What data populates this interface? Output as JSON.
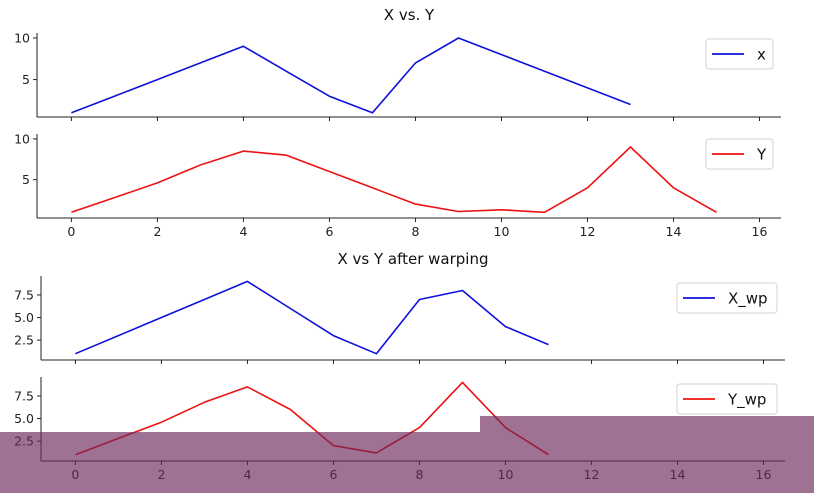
{
  "chart_data": [
    {
      "type": "line",
      "title": "X vs. Y",
      "xlim": [
        -0.8,
        16.5
      ],
      "ylim": [
        0.5,
        10.6
      ],
      "yticks": [
        5,
        10
      ],
      "show_xticklabels": false,
      "legend_loc": "right",
      "series": [
        {
          "name": "x",
          "color": "#1010dd",
          "x": [
            0,
            1,
            2,
            3,
            4,
            5,
            6,
            7,
            8,
            9,
            10,
            11,
            12,
            13
          ],
          "y": [
            1,
            3,
            5,
            7,
            9,
            6,
            3,
            1,
            7,
            10,
            8,
            6,
            4,
            2
          ]
        }
      ]
    },
    {
      "type": "line",
      "title": "",
      "xlim": [
        -0.8,
        16.5
      ],
      "ylim": [
        0.3,
        10.6
      ],
      "yticks": [
        5,
        10
      ],
      "xticks": [
        0,
        2,
        4,
        6,
        8,
        10,
        12,
        14,
        16
      ],
      "show_xticklabels": true,
      "legend_loc": "right",
      "series": [
        {
          "name": "Y",
          "color": "#ee1111",
          "x": [
            0,
            1,
            2,
            3,
            4,
            5,
            6,
            7,
            8,
            9,
            10,
            11,
            12,
            13,
            14,
            15
          ],
          "y": [
            1,
            2.8,
            4.6,
            6.8,
            8.5,
            8,
            6,
            4,
            2,
            1.1,
            1.3,
            1,
            4,
            9,
            4,
            1
          ]
        }
      ]
    },
    {
      "type": "line",
      "title": "X vs Y after warping",
      "xlim": [
        -0.8,
        16.5
      ],
      "ylim": [
        0.3,
        9.6
      ],
      "yticks": [
        2.5,
        5.0,
        7.5
      ],
      "show_xticklabels": false,
      "legend_loc": "right",
      "series": [
        {
          "name": "X_wp",
          "color": "#1010dd",
          "x": [
            0,
            1,
            2,
            3,
            4,
            5,
            6,
            7,
            8,
            9,
            10,
            11
          ],
          "y": [
            1,
            3,
            5,
            7,
            9,
            6,
            3,
            1,
            7,
            8,
            4,
            2
          ]
        }
      ]
    },
    {
      "type": "line",
      "title": "",
      "xlim": [
        -0.8,
        16.5
      ],
      "ylim": [
        0.3,
        9.6
      ],
      "yticks": [
        2.5,
        5.0,
        7.5
      ],
      "xticks": [
        0,
        2,
        4,
        6,
        8,
        10,
        12,
        14,
        16
      ],
      "show_xticklabels": true,
      "legend_loc": "right",
      "series": [
        {
          "name": "Y_wp",
          "color": "#ee1111",
          "x": [
            0,
            1,
            2,
            3,
            4,
            5,
            6,
            7,
            8,
            9,
            10,
            11
          ],
          "y": [
            1,
            2.8,
            4.6,
            6.8,
            8.5,
            6,
            2,
            1.2,
            4,
            9,
            4,
            1
          ]
        }
      ]
    }
  ]
}
